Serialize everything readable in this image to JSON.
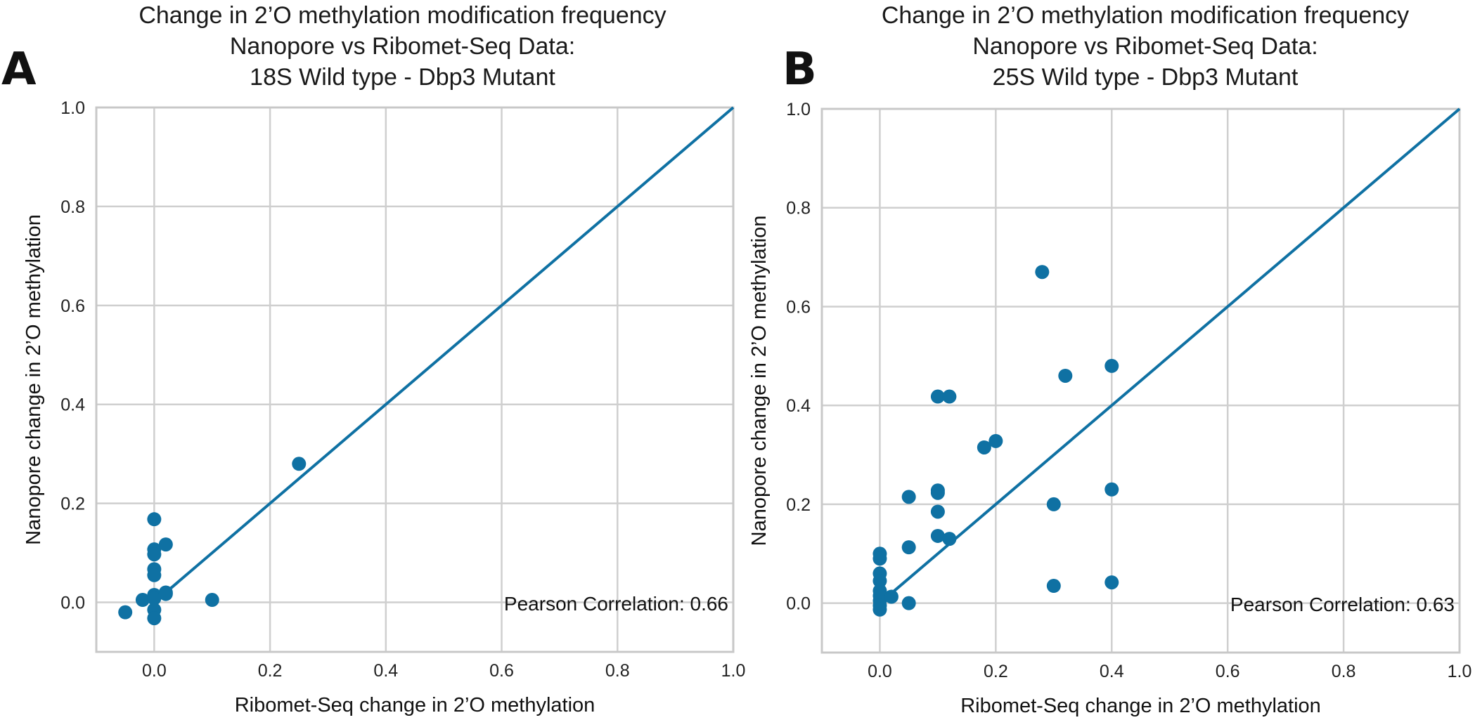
{
  "chart_data": [
    {
      "id": "A",
      "type": "scatter",
      "panel_label": "A",
      "title_lines": [
        "Change in 2’O methylation modification frequency",
        "Nanopore vs Ribomet-Seq Data:",
        "18S Wild type - Dbp3 Mutant"
      ],
      "xlabel": "Ribomet-Seq change in 2’O methylation",
      "ylabel": "Nanopore change in 2’O methylation",
      "xlim": [
        -0.1,
        1.0
      ],
      "ylim": [
        -0.1,
        1.0
      ],
      "xticks": [
        "0.0",
        "0.2",
        "0.4",
        "0.6",
        "0.8",
        "1.0"
      ],
      "yticks": [
        "0.0",
        "0.2",
        "0.4",
        "0.6",
        "0.8",
        "1.0"
      ],
      "grid": true,
      "reference_line": {
        "x": [
          0,
          1
        ],
        "y": [
          0,
          1
        ]
      },
      "annotation": "Pearson Correlation: 0.66",
      "color": "#0f71a3",
      "points": [
        {
          "x": -0.05,
          "y": -0.02
        },
        {
          "x": -0.02,
          "y": 0.005
        },
        {
          "x": 0.0,
          "y": 0.168
        },
        {
          "x": 0.0,
          "y": 0.107
        },
        {
          "x": 0.0,
          "y": 0.097
        },
        {
          "x": 0.0,
          "y": 0.067
        },
        {
          "x": 0.0,
          "y": 0.055
        },
        {
          "x": 0.0,
          "y": 0.015
        },
        {
          "x": 0.0,
          "y": 0.008
        },
        {
          "x": 0.0,
          "y": -0.015
        },
        {
          "x": 0.0,
          "y": -0.032
        },
        {
          "x": 0.02,
          "y": 0.117
        },
        {
          "x": 0.02,
          "y": 0.02
        },
        {
          "x": 0.02,
          "y": 0.017
        },
        {
          "x": 0.1,
          "y": 0.005
        },
        {
          "x": 0.25,
          "y": 0.28
        }
      ]
    },
    {
      "id": "B",
      "type": "scatter",
      "panel_label": "B",
      "title_lines": [
        "Change in 2’O methylation modification frequency",
        "Nanopore vs Ribomet-Seq Data:",
        "25S Wild type - Dbp3 Mutant"
      ],
      "xlabel": "Ribomet-Seq change in 2’O methylation",
      "ylabel": "Nanopore change in 2’O methylation",
      "xlim": [
        -0.1,
        1.0
      ],
      "ylim": [
        -0.1,
        1.0
      ],
      "xticks": [
        "0.0",
        "0.2",
        "0.4",
        "0.6",
        "0.8",
        "1.0"
      ],
      "yticks": [
        "0.0",
        "0.2",
        "0.4",
        "0.6",
        "0.8",
        "1.0"
      ],
      "grid": true,
      "reference_line": {
        "x": [
          0,
          1
        ],
        "y": [
          0,
          1
        ]
      },
      "annotation": "Pearson Correlation: 0.63",
      "color": "#0f71a3",
      "points": [
        {
          "x": 0.0,
          "y": 0.1
        },
        {
          "x": 0.0,
          "y": 0.09
        },
        {
          "x": 0.0,
          "y": 0.06
        },
        {
          "x": 0.0,
          "y": 0.045
        },
        {
          "x": 0.0,
          "y": 0.025
        },
        {
          "x": 0.0,
          "y": 0.015
        },
        {
          "x": 0.0,
          "y": 0.005
        },
        {
          "x": 0.0,
          "y": -0.005
        },
        {
          "x": 0.0,
          "y": -0.013
        },
        {
          "x": 0.02,
          "y": 0.013
        },
        {
          "x": 0.05,
          "y": 0.215
        },
        {
          "x": 0.05,
          "y": 0.113
        },
        {
          "x": 0.05,
          "y": 0.0
        },
        {
          "x": 0.1,
          "y": 0.418
        },
        {
          "x": 0.1,
          "y": 0.228
        },
        {
          "x": 0.1,
          "y": 0.223
        },
        {
          "x": 0.1,
          "y": 0.185
        },
        {
          "x": 0.1,
          "y": 0.136
        },
        {
          "x": 0.12,
          "y": 0.418
        },
        {
          "x": 0.12,
          "y": 0.13
        },
        {
          "x": 0.18,
          "y": 0.315
        },
        {
          "x": 0.2,
          "y": 0.328
        },
        {
          "x": 0.28,
          "y": 0.67
        },
        {
          "x": 0.3,
          "y": 0.2
        },
        {
          "x": 0.3,
          "y": 0.035
        },
        {
          "x": 0.32,
          "y": 0.46
        },
        {
          "x": 0.4,
          "y": 0.48
        },
        {
          "x": 0.4,
          "y": 0.23
        },
        {
          "x": 0.4,
          "y": 0.042
        }
      ]
    }
  ]
}
